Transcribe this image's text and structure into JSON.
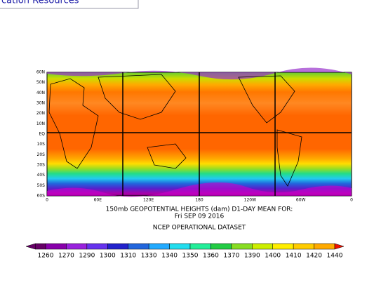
{
  "header": {
    "link": "cation Resources"
  },
  "map": {
    "lat_labels": [
      "60N",
      "50N",
      "40N",
      "30N",
      "20N",
      "10N",
      "EQ",
      "10S",
      "20S",
      "30S",
      "40S",
      "50S",
      "60S"
    ],
    "lon_labels": [
      "0",
      "60E",
      "120E",
      "180",
      "120W",
      "60W",
      "0"
    ],
    "title": "150mb GEOPOTENTIAL HEIGHTS (dam)    D1-DAY MEAN FOR:",
    "date": "Fri SEP 09 2016",
    "dataset": "NCEP OPERATIONAL DATASET"
  },
  "colorbar": {
    "labels": [
      "1260",
      "1270",
      "1290",
      "1300",
      "1310",
      "1330",
      "1340",
      "1350",
      "1360",
      "1370",
      "1390",
      "1400",
      "1410",
      "1420",
      "1440"
    ]
  }
}
